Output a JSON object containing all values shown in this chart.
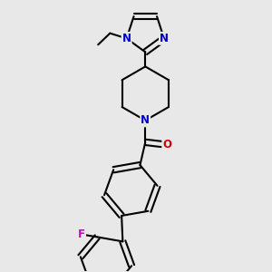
{
  "bg_color": "#e8e8e8",
  "bond_color": "#000000",
  "N_color": "#0000cc",
  "O_color": "#cc0000",
  "F_color": "#cc00cc",
  "line_width": 1.5,
  "figsize": [
    3.0,
    3.0
  ],
  "dpi": 100,
  "xlim": [
    -1.5,
    1.5
  ],
  "ylim": [
    -3.0,
    2.2
  ]
}
